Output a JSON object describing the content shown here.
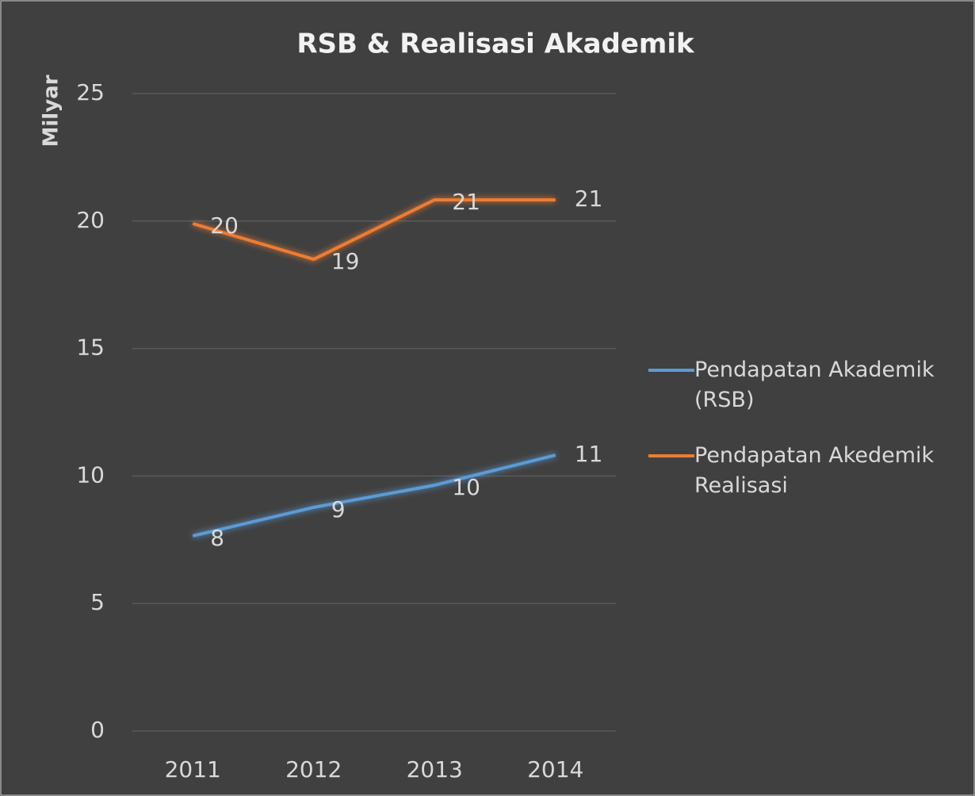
{
  "chart_data": {
    "type": "line",
    "title": "RSB & Realisasi Akademik",
    "y_label": "Milyar",
    "categories": [
      "2011",
      "2012",
      "2013",
      "2014"
    ],
    "series": [
      {
        "name": "Pendapatan Akademik (RSB)",
        "color": "#5b9bd5",
        "values": [
          7.65,
          8.77,
          9.64,
          10.82
        ],
        "value_labels": [
          "8",
          "9",
          "10",
          "11"
        ]
      },
      {
        "name": "Pendapatan Akedemik Realisasi",
        "color": "#ed7d31",
        "values": [
          19.9,
          18.5,
          20.83,
          20.83
        ],
        "value_labels": [
          "20",
          "19",
          "21",
          "21"
        ]
      }
    ],
    "ylim": [
      0,
      25
    ],
    "yticks": [
      0,
      5,
      10,
      15,
      20,
      25
    ],
    "grid": true,
    "legend": "right"
  }
}
